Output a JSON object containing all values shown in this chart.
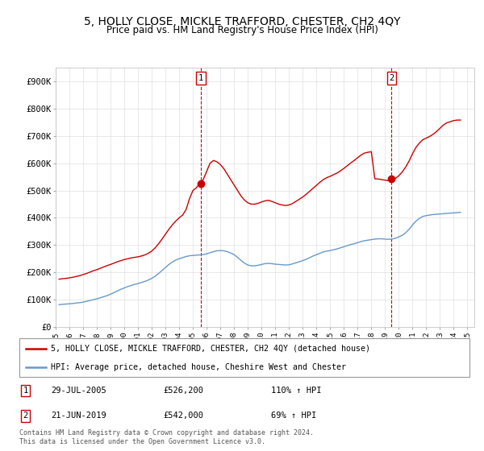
{
  "title": "5, HOLLY CLOSE, MICKLE TRAFFORD, CHESTER, CH2 4QY",
  "subtitle": "Price paid vs. HM Land Registry's House Price Index (HPI)",
  "title_fontsize": 10,
  "subtitle_fontsize": 8.5,
  "ylim": [
    0,
    950000
  ],
  "yticks": [
    0,
    100000,
    200000,
    300000,
    400000,
    500000,
    600000,
    700000,
    800000,
    900000
  ],
  "ytick_labels": [
    "£0",
    "£100K",
    "£200K",
    "£300K",
    "£400K",
    "£500K",
    "£600K",
    "£700K",
    "£800K",
    "£900K"
  ],
  "xlim_start": 1995.0,
  "xlim_end": 2025.5,
  "grid_color": "#e0e0e0",
  "red_line_color": "#cc0000",
  "blue_line_color": "#6699cc",
  "marker1_x": 2005.57,
  "marker1_y": 526200,
  "marker2_x": 2019.47,
  "marker2_y": 542000,
  "annotation1_label": "1",
  "annotation2_label": "2",
  "legend_line1": "5, HOLLY CLOSE, MICKLE TRAFFORD, CHESTER, CH2 4QY (detached house)",
  "legend_line2": "HPI: Average price, detached house, Cheshire West and Chester",
  "table_row1": [
    "1",
    "29-JUL-2005",
    "£526,200",
    "110% ↑ HPI"
  ],
  "table_row2": [
    "2",
    "21-JUN-2019",
    "£542,000",
    "69% ↑ HPI"
  ],
  "footer": "Contains HM Land Registry data © Crown copyright and database right 2024.\nThis data is licensed under the Open Government Licence v3.0.",
  "hpi_data": {
    "years": [
      1995.25,
      1995.5,
      1995.75,
      1996.0,
      1996.25,
      1996.5,
      1996.75,
      1997.0,
      1997.25,
      1997.5,
      1997.75,
      1998.0,
      1998.25,
      1998.5,
      1998.75,
      1999.0,
      1999.25,
      1999.5,
      1999.75,
      2000.0,
      2000.25,
      2000.5,
      2000.75,
      2001.0,
      2001.25,
      2001.5,
      2001.75,
      2002.0,
      2002.25,
      2002.5,
      2002.75,
      2003.0,
      2003.25,
      2003.5,
      2003.75,
      2004.0,
      2004.25,
      2004.5,
      2004.75,
      2005.0,
      2005.25,
      2005.5,
      2005.75,
      2006.0,
      2006.25,
      2006.5,
      2006.75,
      2007.0,
      2007.25,
      2007.5,
      2007.75,
      2008.0,
      2008.25,
      2008.5,
      2008.75,
      2009.0,
      2009.25,
      2009.5,
      2009.75,
      2010.0,
      2010.25,
      2010.5,
      2010.75,
      2011.0,
      2011.25,
      2011.5,
      2011.75,
      2012.0,
      2012.25,
      2012.5,
      2012.75,
      2013.0,
      2013.25,
      2013.5,
      2013.75,
      2014.0,
      2014.25,
      2014.5,
      2014.75,
      2015.0,
      2015.25,
      2015.5,
      2015.75,
      2016.0,
      2016.25,
      2016.5,
      2016.75,
      2017.0,
      2017.25,
      2017.5,
      2017.75,
      2018.0,
      2018.25,
      2018.5,
      2018.75,
      2019.0,
      2019.25,
      2019.5,
      2019.75,
      2020.0,
      2020.25,
      2020.5,
      2020.75,
      2021.0,
      2021.25,
      2021.5,
      2021.75,
      2022.0,
      2022.25,
      2022.5,
      2022.75,
      2023.0,
      2023.25,
      2023.5,
      2023.75,
      2024.0,
      2024.25,
      2024.5
    ],
    "values": [
      82000,
      83000,
      84000,
      85000,
      86000,
      88000,
      89000,
      91000,
      94000,
      97000,
      100000,
      103000,
      107000,
      111000,
      115000,
      120000,
      126000,
      132000,
      138000,
      143000,
      148000,
      152000,
      156000,
      159000,
      163000,
      167000,
      172000,
      178000,
      186000,
      196000,
      207000,
      218000,
      229000,
      238000,
      245000,
      250000,
      254000,
      258000,
      261000,
      262000,
      263000,
      264000,
      265000,
      268000,
      272000,
      276000,
      279000,
      280000,
      279000,
      276000,
      271000,
      265000,
      255000,
      244000,
      234000,
      227000,
      224000,
      224000,
      226000,
      229000,
      232000,
      233000,
      232000,
      230000,
      229000,
      228000,
      227000,
      228000,
      231000,
      235000,
      239000,
      243000,
      248000,
      254000,
      260000,
      265000,
      270000,
      275000,
      278000,
      280000,
      283000,
      286000,
      290000,
      294000,
      298000,
      302000,
      305000,
      309000,
      313000,
      316000,
      318000,
      320000,
      322000,
      323000,
      323000,
      322000,
      321000,
      322000,
      325000,
      330000,
      336000,
      345000,
      358000,
      374000,
      388000,
      398000,
      405000,
      408000,
      410000,
      412000,
      413000,
      414000,
      415000,
      416000,
      417000,
      418000,
      419000,
      420000
    ]
  },
  "property_data": {
    "years": [
      1995.25,
      1995.5,
      1995.75,
      1996.0,
      1996.25,
      1996.5,
      1996.75,
      1997.0,
      1997.25,
      1997.5,
      1997.75,
      1998.0,
      1998.25,
      1998.5,
      1998.75,
      1999.0,
      1999.25,
      1999.5,
      1999.75,
      2000.0,
      2000.25,
      2000.5,
      2000.75,
      2001.0,
      2001.25,
      2001.5,
      2001.75,
      2002.0,
      2002.25,
      2002.5,
      2002.75,
      2003.0,
      2003.25,
      2003.5,
      2003.75,
      2004.0,
      2004.25,
      2004.5,
      2004.75,
      2005.0,
      2005.25,
      2005.5,
      2005.75,
      2006.0,
      2006.25,
      2006.5,
      2006.75,
      2007.0,
      2007.25,
      2007.5,
      2007.75,
      2008.0,
      2008.25,
      2008.5,
      2008.75,
      2009.0,
      2009.25,
      2009.5,
      2009.75,
      2010.0,
      2010.25,
      2010.5,
      2010.75,
      2011.0,
      2011.25,
      2011.5,
      2011.75,
      2012.0,
      2012.25,
      2012.5,
      2012.75,
      2013.0,
      2013.25,
      2013.5,
      2013.75,
      2014.0,
      2014.25,
      2014.5,
      2014.75,
      2015.0,
      2015.25,
      2015.5,
      2015.75,
      2016.0,
      2016.25,
      2016.5,
      2016.75,
      2017.0,
      2017.25,
      2017.5,
      2017.75,
      2018.0,
      2018.25,
      2018.5,
      2018.75,
      2019.0,
      2019.25,
      2019.5,
      2019.75,
      2020.0,
      2020.25,
      2020.5,
      2020.75,
      2021.0,
      2021.25,
      2021.5,
      2021.75,
      2022.0,
      2022.25,
      2022.5,
      2022.75,
      2023.0,
      2023.25,
      2023.5,
      2023.75,
      2024.0,
      2024.25,
      2024.5
    ],
    "values": [
      175000,
      177000,
      178000,
      180000,
      182000,
      185000,
      188000,
      192000,
      196000,
      201000,
      206000,
      210000,
      215000,
      220000,
      225000,
      229000,
      234000,
      239000,
      243000,
      247000,
      250000,
      253000,
      255000,
      257000,
      260000,
      264000,
      270000,
      278000,
      290000,
      305000,
      322000,
      340000,
      358000,
      374000,
      388000,
      400000,
      410000,
      430000,
      470000,
      500000,
      510000,
      526200,
      540000,
      570000,
      600000,
      610000,
      605000,
      595000,
      580000,
      560000,
      540000,
      520000,
      500000,
      480000,
      465000,
      455000,
      450000,
      450000,
      453000,
      458000,
      462000,
      464000,
      460000,
      455000,
      450000,
      447000,
      445000,
      447000,
      452000,
      460000,
      468000,
      476000,
      486000,
      497000,
      508000,
      519000,
      530000,
      540000,
      547000,
      552000,
      558000,
      564000,
      572000,
      581000,
      591000,
      601000,
      610000,
      620000,
      630000,
      637000,
      640000,
      642000,
      543000,
      542000,
      540000,
      538000,
      536000,
      538000,
      544000,
      554000,
      568000,
      586000,
      608000,
      635000,
      658000,
      674000,
      686000,
      692000,
      698000,
      706000,
      716000,
      728000,
      740000,
      748000,
      752000,
      756000,
      758000,
      758000
    ]
  }
}
